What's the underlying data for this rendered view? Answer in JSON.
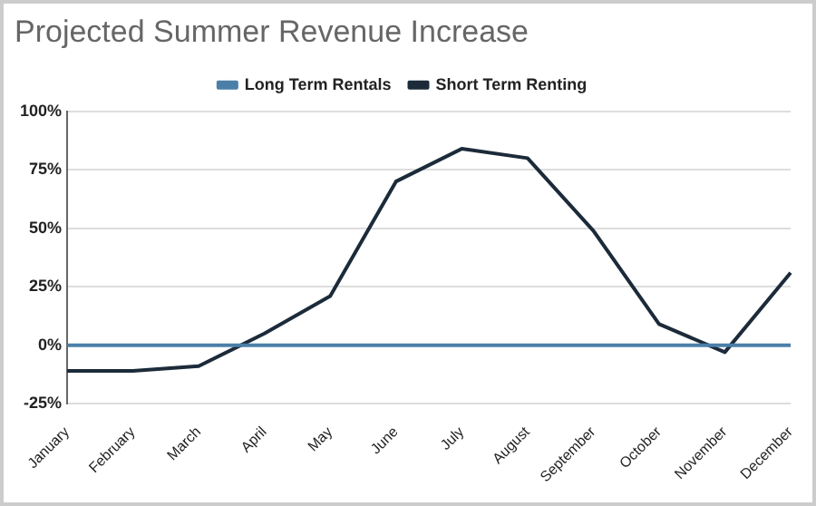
{
  "chart_data": {
    "type": "line",
    "title": "Projected Summer Revenue Increase",
    "categories": [
      "January",
      "February",
      "March",
      "April",
      "May",
      "June",
      "July",
      "August",
      "September",
      "October",
      "November",
      "December"
    ],
    "series": [
      {
        "name": "Long Term Rentals",
        "color": "#4a7fa8",
        "values": [
          0,
          0,
          0,
          0,
          0,
          0,
          0,
          0,
          0,
          0,
          0,
          0
        ]
      },
      {
        "name": "Short Term Renting",
        "color": "#1c2b3a",
        "values": [
          -11,
          -11,
          -9,
          5,
          21,
          70,
          84,
          80,
          49,
          9,
          -3,
          31
        ]
      }
    ],
    "ylim": [
      -25,
      100
    ],
    "yticks": [
      {
        "value": -25,
        "label": "-25%"
      },
      {
        "value": 0,
        "label": "0%"
      },
      {
        "value": 25,
        "label": "25%"
      },
      {
        "value": 50,
        "label": "50%"
      },
      {
        "value": 75,
        "label": "75%"
      },
      {
        "value": 100,
        "label": "100%"
      }
    ],
    "grid": "y",
    "legend": "top",
    "marker": "none",
    "line_style": "solid"
  }
}
